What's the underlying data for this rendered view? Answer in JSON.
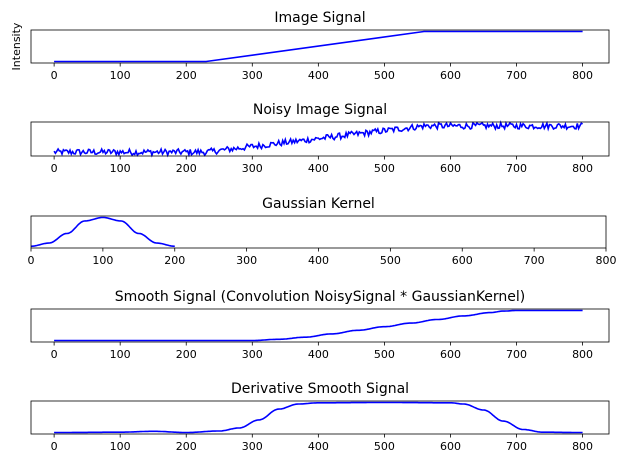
{
  "colors": {
    "line": "#0000ff",
    "axes": "#000000",
    "background": "#ffffff"
  },
  "chart_data": [
    {
      "type": "line",
      "title": "Image Signal",
      "xlabel": "",
      "ylabel": "Intensity",
      "xlim": [
        -35,
        840
      ],
      "ylim": [
        -0.05,
        1.05
      ],
      "xticks": [
        0,
        100,
        200,
        300,
        400,
        500,
        600,
        700,
        800
      ],
      "series": [
        {
          "x": [
            0,
            230,
            560,
            800
          ],
          "y": [
            0.0,
            0.0,
            1.0,
            1.0
          ]
        }
      ]
    },
    {
      "type": "line",
      "title": "Noisy Image Signal",
      "xlabel": "",
      "ylabel": "",
      "xlim": [
        -35,
        840
      ],
      "ylim": [
        -0.15,
        1.15
      ],
      "xticks": [
        0,
        100,
        200,
        300,
        400,
        500,
        600,
        700,
        800
      ],
      "series": [
        {
          "x": [
            0,
            230,
            560,
            800
          ],
          "y": [
            0.0,
            0.0,
            1.0,
            1.0
          ],
          "noise_amplitude": 0.12
        }
      ]
    },
    {
      "type": "line",
      "title": "Gaussian Kernel",
      "xlabel": "",
      "ylabel": "",
      "xlim": [
        0,
        800
      ],
      "ylim": [
        -0.05,
        1.05
      ],
      "xticks": [
        0,
        100,
        200,
        300,
        400,
        500,
        600,
        700,
        800
      ],
      "series": [
        {
          "x": [
            0,
            25,
            50,
            75,
            100,
            125,
            150,
            175,
            200
          ],
          "y": [
            0.01,
            0.12,
            0.45,
            0.88,
            1.0,
            0.88,
            0.45,
            0.12,
            0.01
          ]
        }
      ]
    },
    {
      "type": "line",
      "title": "Smooth Signal (Convolution NoisySignal * GaussianKernel)",
      "xlabel": "",
      "ylabel": "",
      "xlim": [
        -35,
        840
      ],
      "ylim": [
        -0.05,
        1.05
      ],
      "xticks": [
        0,
        100,
        200,
        300,
        400,
        500,
        600,
        700,
        800
      ],
      "series": [
        {
          "x": [
            0,
            300,
            340,
            380,
            420,
            460,
            500,
            540,
            580,
            620,
            660,
            680,
            700,
            800
          ],
          "y": [
            0.0,
            0.0,
            0.04,
            0.11,
            0.22,
            0.34,
            0.46,
            0.58,
            0.7,
            0.82,
            0.93,
            0.98,
            1.0,
            1.0
          ]
        }
      ]
    },
    {
      "type": "line",
      "title": "Derivative Smooth Signal",
      "xlabel": "",
      "ylabel": "",
      "xlim": [
        -35,
        840
      ],
      "ylim": [
        -0.05,
        1.05
      ],
      "xticks": [
        0,
        100,
        200,
        300,
        400,
        500,
        600,
        700,
        800
      ],
      "series": [
        {
          "x": [
            0,
            100,
            150,
            200,
            250,
            280,
            310,
            340,
            370,
            400,
            500,
            600,
            620,
            650,
            680,
            710,
            740,
            800
          ],
          "y": [
            0.0,
            0.01,
            0.04,
            0.0,
            0.05,
            0.15,
            0.42,
            0.78,
            0.95,
            0.99,
            1.0,
            0.99,
            0.95,
            0.75,
            0.38,
            0.1,
            0.01,
            0.0
          ]
        }
      ]
    }
  ]
}
